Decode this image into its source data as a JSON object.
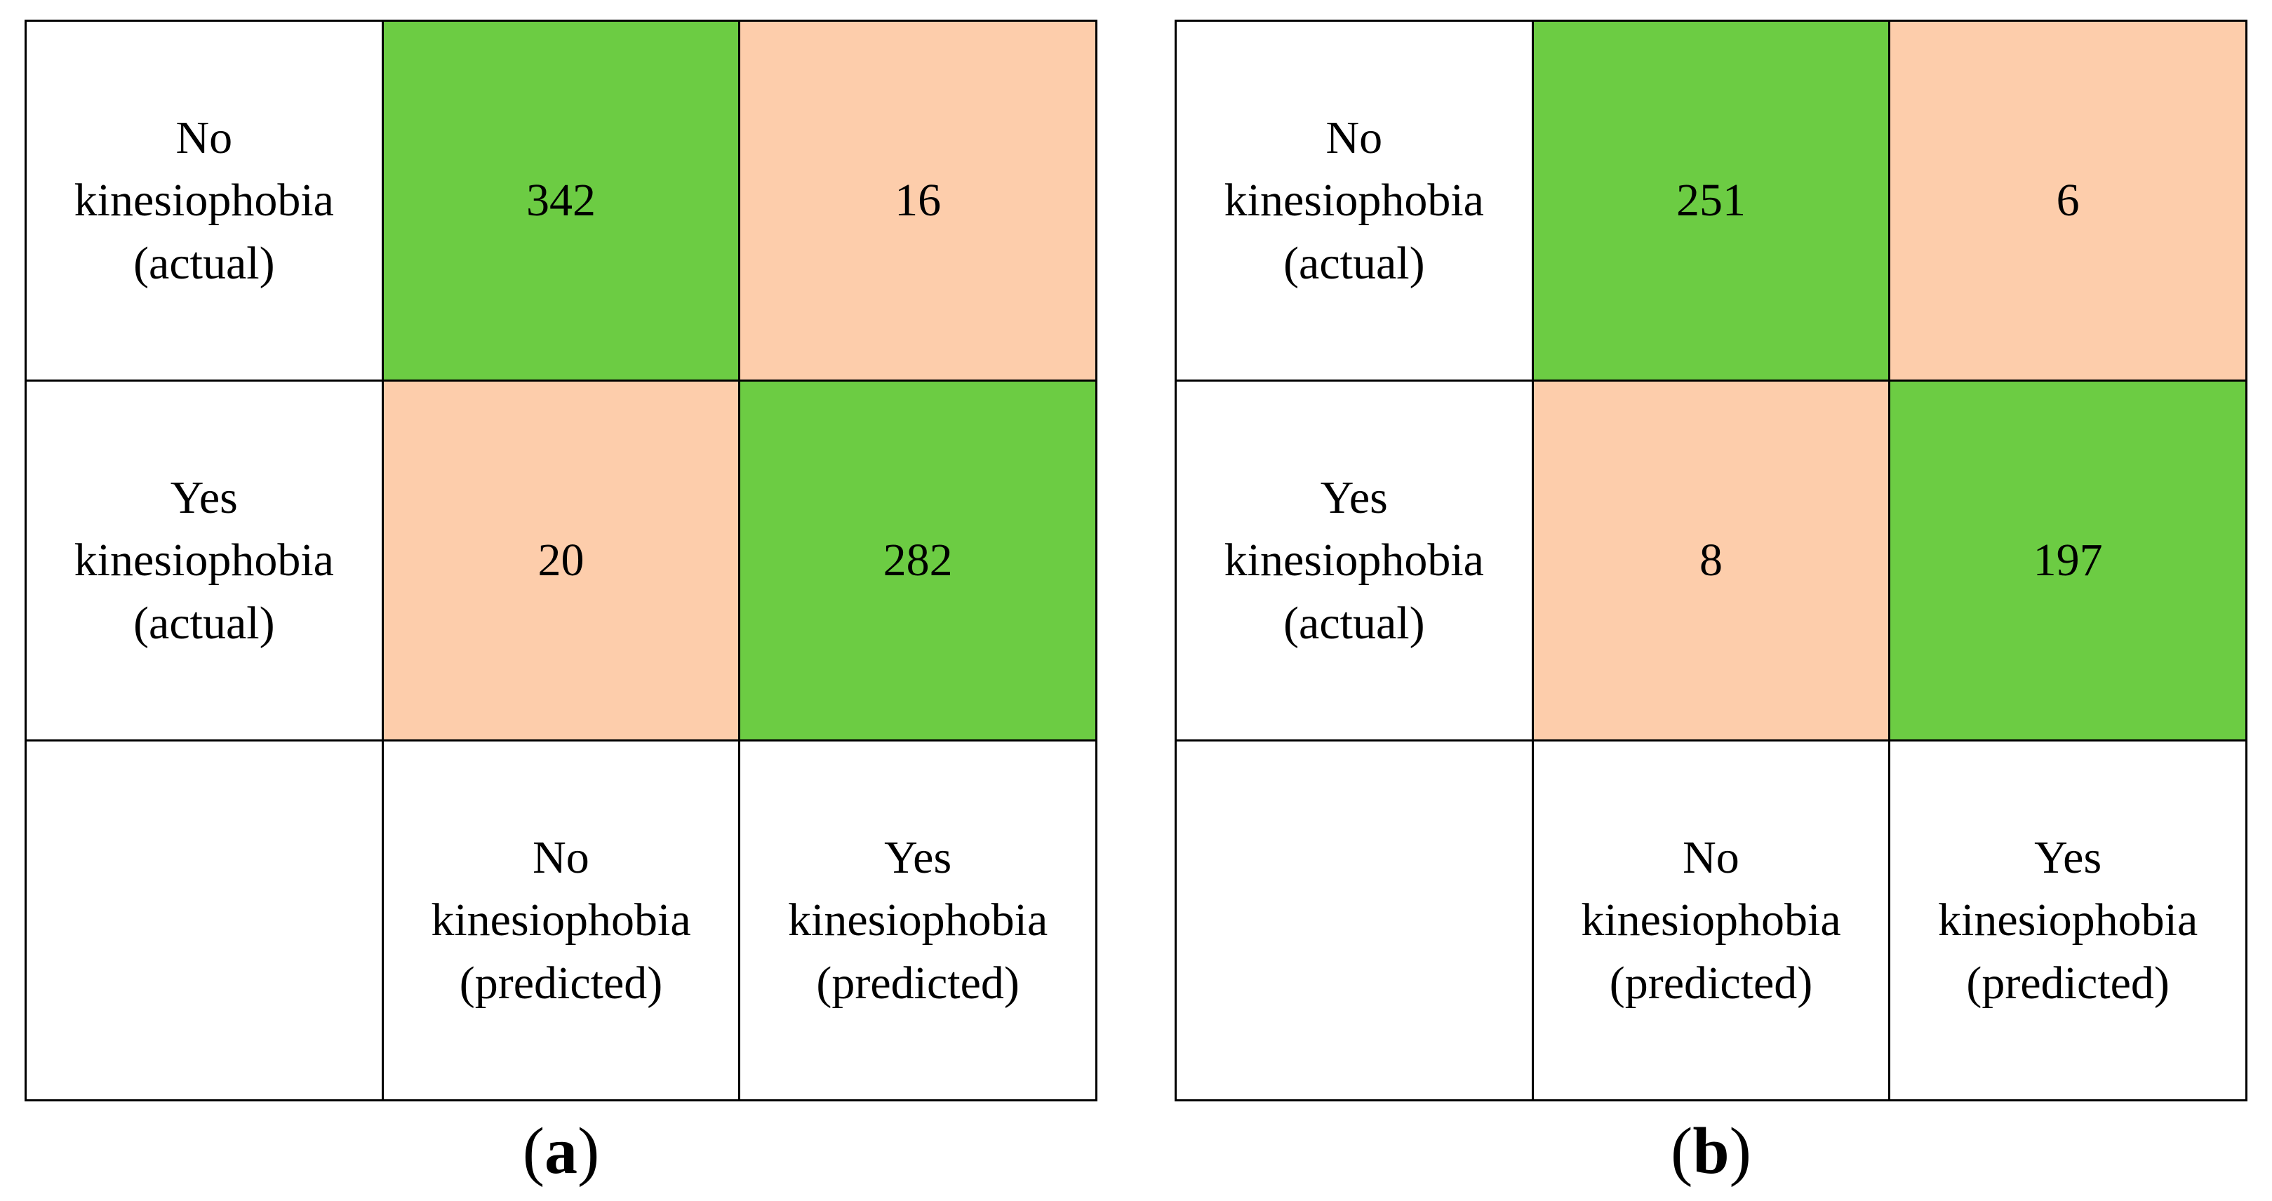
{
  "figure": {
    "description": "Two confusion matrices for kinesiophobia classification, panels (a) and (b)",
    "background": "#ffffff"
  },
  "styles": {
    "correct_color": "#6CCC43",
    "error_color": "#FDCDAB",
    "border_color": "#000000",
    "text_color": "#000000"
  },
  "captions": [
    {
      "open": "(",
      "letter": "a",
      "close": ")"
    },
    {
      "open": "(",
      "letter": "b",
      "close": ")"
    }
  ],
  "chart_data": [
    {
      "type": "table",
      "subtype": "confusion-matrix",
      "caption": "(a)",
      "row_labels": [
        "No kinesiophobia (actual)",
        "Yes kinesiophobia (actual)"
      ],
      "col_labels": [
        "No kinesiophobia (predicted)",
        "Yes kinesiophobia (predicted)"
      ],
      "values": [
        [
          342,
          16
        ],
        [
          20,
          282
        ]
      ],
      "cell_colors": [
        [
          "green",
          "peach"
        ],
        [
          "peach",
          "green"
        ]
      ],
      "legend_hint": "green = correct prediction, peach = misclassification"
    },
    {
      "type": "table",
      "subtype": "confusion-matrix",
      "caption": "(b)",
      "row_labels": [
        "No kinesiophobia (actual)",
        "Yes kinesiophobia (actual)"
      ],
      "col_labels": [
        "No kinesiophobia (predicted)",
        "Yes kinesiophobia (predicted)"
      ],
      "values": [
        [
          251,
          6
        ],
        [
          8,
          197
        ]
      ],
      "cell_colors": [
        [
          "green",
          "peach"
        ],
        [
          "peach",
          "green"
        ]
      ],
      "legend_hint": "green = correct prediction, peach = misclassification"
    }
  ]
}
